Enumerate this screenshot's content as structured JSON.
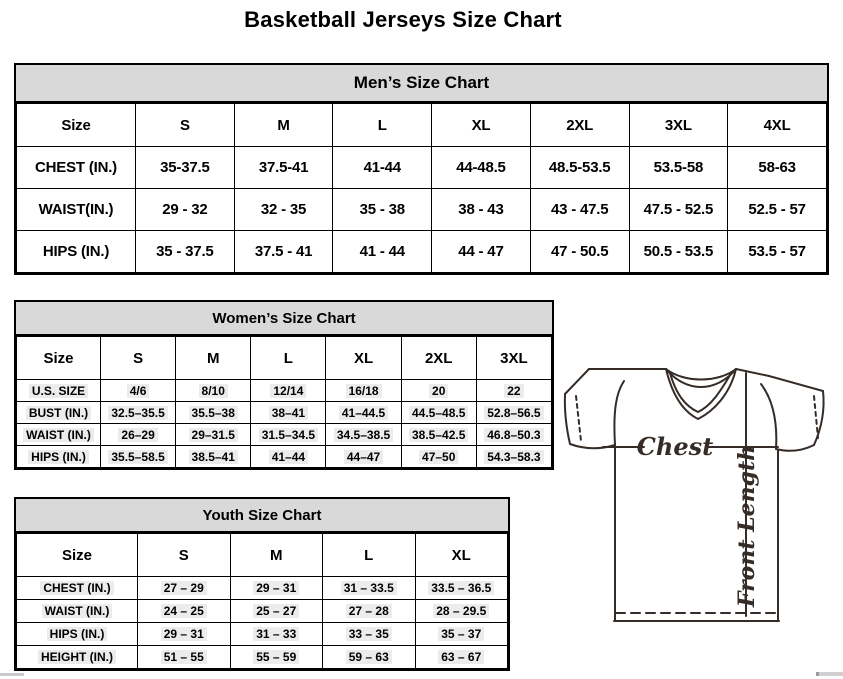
{
  "page": {
    "title": "Basketball Jerseys Size Chart"
  },
  "colors": {
    "table_header_bg": "#d9d9d9",
    "table_border": "#000000",
    "diagram_line": "#352b27",
    "cell_text_highlight": "#ececec"
  },
  "mens_chart": {
    "title": "Men’s Size Chart",
    "columns": [
      "Size",
      "S",
      "M",
      "L",
      "XL",
      "2XL",
      "3XL",
      "4XL"
    ],
    "rows": [
      {
        "label": "CHEST (IN.)",
        "values": [
          "35-37.5",
          "37.5-41",
          "41-44",
          "44-48.5",
          "48.5-53.5",
          "53.5-58",
          "58-63"
        ]
      },
      {
        "label": "WAIST(IN.)",
        "values": [
          "29 - 32",
          "32 - 35",
          "35 - 38",
          "38 - 43",
          "43 - 47.5",
          "47.5 - 52.5",
          "52.5 - 57"
        ]
      },
      {
        "label": "HIPS (IN.)",
        "values": [
          "35 - 37.5",
          "37.5 - 41",
          "41 - 44",
          "44 - 47",
          "47 - 50.5",
          "50.5 - 53.5",
          "53.5 - 57"
        ]
      }
    ]
  },
  "womens_chart": {
    "title": "Women’s Size Chart",
    "columns": [
      "Size",
      "S",
      "M",
      "L",
      "XL",
      "2XL",
      "3XL"
    ],
    "rows": [
      {
        "label": "U.S. SIZE",
        "values": [
          "4/6",
          "8/10",
          "12/14",
          "16/18",
          "20",
          "22"
        ]
      },
      {
        "label": "BUST (IN.)",
        "values": [
          "32.5–35.5",
          "35.5–38",
          "38–41",
          "41–44.5",
          "44.5–48.5",
          "52.8–56.5"
        ]
      },
      {
        "label": "WAIST (IN.)",
        "values": [
          "26–29",
          "29–31.5",
          "31.5–34.5",
          "34.5–38.5",
          "38.5–42.5",
          "46.8–50.3"
        ]
      },
      {
        "label": "HIPS (IN.)",
        "values": [
          "35.5–58.5",
          "38.5–41",
          "41–44",
          "44–47",
          "47–50",
          "54.3–58.3"
        ]
      }
    ]
  },
  "youth_chart": {
    "title": "Youth Size Chart",
    "columns": [
      "Size",
      "S",
      "M",
      "L",
      "XL"
    ],
    "rows": [
      {
        "label": "CHEST (IN.)",
        "values": [
          "27 – 29",
          "29 – 31",
          "31 – 33.5",
          "33.5 – 36.5"
        ]
      },
      {
        "label": "WAIST (IN.)",
        "values": [
          "24 – 25",
          "25 – 27",
          "27 – 28",
          "28 – 29.5"
        ]
      },
      {
        "label": "HIPS (IN.)",
        "values": [
          "29 – 31",
          "31 – 33",
          "33 – 35",
          "35 – 37"
        ]
      },
      {
        "label": "HEIGHT (IN.)",
        "values": [
          "51 – 55",
          "55 – 59",
          "59 – 63",
          "63 – 67"
        ]
      }
    ]
  },
  "diagram": {
    "chest_label": "Chest",
    "front_length_label": "Front Length"
  }
}
